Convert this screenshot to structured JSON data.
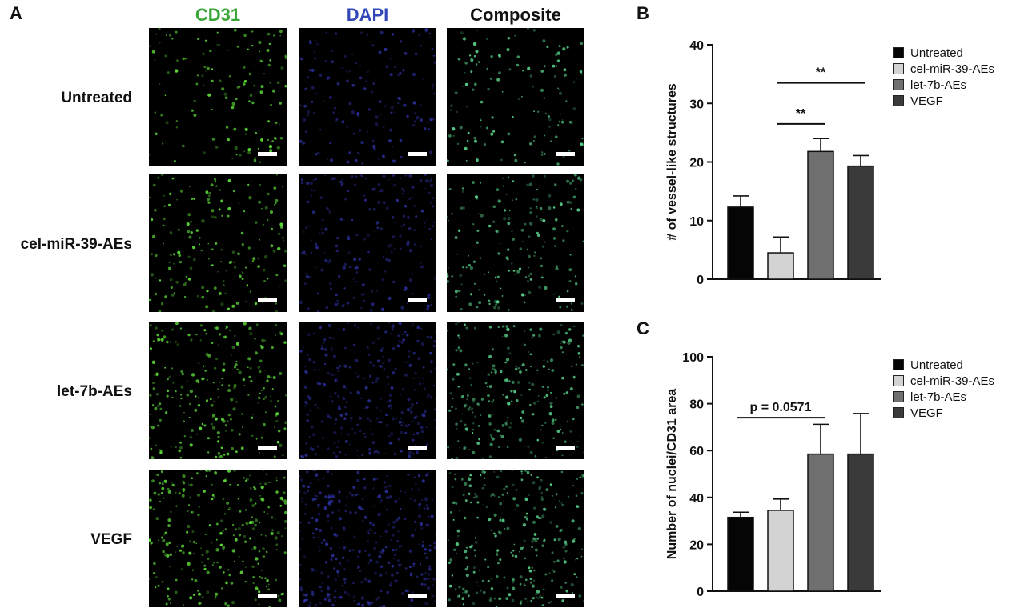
{
  "panels": {
    "a": "A",
    "b": "B",
    "c": "C"
  },
  "image_panel": {
    "columns": [
      {
        "label": "CD31",
        "color": "#3aa637",
        "dot_color": "#5fe03a"
      },
      {
        "label": "DAPI",
        "color": "#3348b8",
        "dot_color": "#3b3fd0"
      },
      {
        "label": "Composite",
        "color": "#111111",
        "dot_color": "#58d08a"
      }
    ],
    "rows": [
      {
        "label": "Untreated",
        "density": 0.35
      },
      {
        "label": "cel-miR-39-AEs",
        "density": 0.55
      },
      {
        "label": "let-7b-AEs",
        "density": 0.85
      },
      {
        "label": "VEGF",
        "density": 1.0
      }
    ]
  },
  "chart_data": [
    {
      "type": "bar",
      "panel": "B",
      "categories": [
        "Untreated",
        "cel-miR-39-AEs",
        "let-7b-AEs",
        "VEGF"
      ],
      "values": [
        12.3,
        4.5,
        21.8,
        19.3
      ],
      "errors": [
        1.9,
        2.7,
        2.2,
        1.8
      ],
      "colors": [
        "#050505",
        "#d3d3d3",
        "#6f6f6f",
        "#3a3a3a"
      ],
      "ylabel": "# of vessel-like structures",
      "ylim": [
        0,
        40
      ],
      "yticks": [
        0,
        10,
        20,
        30,
        40
      ],
      "legend": [
        "Untreated",
        "cel-miR-39-AEs",
        "let-7b-AEs",
        "VEGF"
      ],
      "significance": [
        {
          "from": 1,
          "to": 2,
          "label": "**",
          "y": 26.5
        },
        {
          "from": 1,
          "to": 3,
          "label": "**",
          "y": 33.5
        }
      ]
    },
    {
      "type": "bar",
      "panel": "C",
      "categories": [
        "Untreated",
        "cel-miR-39-AEs",
        "let-7b-AEs",
        "VEGF"
      ],
      "values": [
        31.5,
        34.5,
        58.5,
        58.5
      ],
      "errors": [
        2.2,
        4.8,
        12.7,
        17.3
      ],
      "colors": [
        "#050505",
        "#d3d3d3",
        "#6f6f6f",
        "#3a3a3a"
      ],
      "ylabel": "Number of nuclei/CD31 area",
      "ylim": [
        0,
        100
      ],
      "yticks": [
        0,
        20,
        40,
        60,
        80,
        100
      ],
      "legend": [
        "Untreated",
        "cel-miR-39-AEs",
        "let-7b-AEs",
        "VEGF"
      ],
      "significance": [
        {
          "from": 0,
          "to": 2,
          "label": "p = 0.0571",
          "y": 74
        }
      ]
    }
  ]
}
